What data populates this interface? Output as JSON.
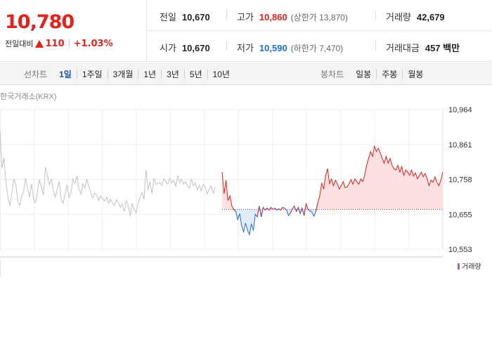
{
  "price": {
    "current": "10,780",
    "change_label": "전일대비",
    "change_value": "110",
    "change_rate": "+1.03%",
    "direction": "up"
  },
  "stats": {
    "prev_close": {
      "label": "전일",
      "value": "10,670"
    },
    "high": {
      "label": "고가",
      "value": "10,860",
      "sub": "(상한가 13,870)"
    },
    "volume": {
      "label": "거래량",
      "value": "42,679"
    },
    "open": {
      "label": "시가",
      "value": "10,670"
    },
    "low": {
      "label": "저가",
      "value": "10,590",
      "sub": "(하한가 7,470)"
    },
    "amount": {
      "label": "거래대금",
      "value": "457 백만"
    }
  },
  "period_tabs": {
    "title": "선차트",
    "items": [
      "1일",
      "1주일",
      "3개월",
      "1년",
      "3년",
      "5년",
      "10년"
    ],
    "active": "1일"
  },
  "candle_tabs": {
    "title": "봉차트",
    "items": [
      "일봉",
      "주봉",
      "월봉"
    ]
  },
  "chart": {
    "source_label": "한국거래소(KRX)",
    "volume_label": "거래량",
    "colors": {
      "up": "#e6211b",
      "down": "#1d6fd6",
      "past": "#c2c2c2",
      "up_fill": "#fde1e1",
      "down_fill": "#e2ecf8"
    }
  },
  "chart_data": {
    "type": "line",
    "y_ticks": [
      "10,964",
      "10,861",
      "10,758",
      "10,655",
      "10,553"
    ],
    "ylim": [
      10553,
      10964
    ],
    "baseline": 10670,
    "grid": true,
    "previous_day": [
      10904,
      10790,
      10822,
      10752,
      10706,
      10680,
      10716,
      10760,
      10744,
      10694,
      10682,
      10710,
      10724,
      10762,
      10732,
      10706,
      10746,
      10700,
      10690,
      10722,
      10758,
      10736,
      10712,
      10794,
      10770,
      10742,
      10760,
      10726,
      10706,
      10730,
      10752,
      10700,
      10688,
      10716,
      10742,
      10704,
      10722,
      10760,
      10746,
      10768,
      10730,
      10716,
      10746,
      10734,
      10758,
      10738,
      10720,
      10704,
      10718,
      10712,
      10698,
      10710,
      10702,
      10694,
      10706,
      10688,
      10700,
      10690,
      10682,
      10698,
      10690,
      10676,
      10686,
      10664,
      10696,
      10680,
      10650,
      10688,
      10670,
      10660,
      10690,
      10706,
      10720,
      10700,
      10786,
      10728,
      10752,
      10716,
      10762,
      10744,
      10746,
      10750,
      10740,
      10760,
      10752,
      10744,
      10762,
      10748,
      10756,
      10738,
      10770,
      10748,
      10760,
      10744,
      10752,
      10740,
      10732,
      10760,
      10740,
      10748,
      10728,
      10742,
      10724,
      10744,
      10736,
      10716,
      10730,
      10740,
      10718,
      10736
    ],
    "today": [
      10780,
      10716,
      10756,
      10696,
      10710,
      10680,
      10670,
      10664,
      10640,
      10658,
      10622,
      10604,
      10630,
      10610,
      10596,
      10628,
      10608,
      10656,
      10648,
      10680,
      10648,
      10676,
      10668,
      10674,
      10668,
      10676,
      10670,
      10674,
      10668,
      10672,
      10668,
      10676,
      10674,
      10668,
      10652,
      10660,
      10672,
      10680,
      10664,
      10676,
      10658,
      10674,
      10652,
      10686,
      10670,
      10666,
      10662,
      10650,
      10664,
      10690,
      10710,
      10748,
      10730,
      10770,
      10790,
      10746,
      10760,
      10740,
      10756,
      10746,
      10730,
      10740,
      10752,
      10734,
      10736,
      10746,
      10758,
      10744,
      10760,
      10752,
      10744,
      10760,
      10752,
      10770,
      10800,
      10820,
      10840,
      10826,
      10856,
      10840,
      10850,
      10836,
      10820,
      10806,
      10826,
      10806,
      10820,
      10800,
      10790,
      10786,
      10800,
      10780,
      10796,
      10770,
      10786,
      10780,
      10770,
      10786,
      10768,
      10778,
      10760,
      10770,
      10780,
      10766,
      10776,
      10760,
      10740,
      10756,
      10750,
      10766,
      10750,
      10740,
      10756,
      10780
    ]
  }
}
